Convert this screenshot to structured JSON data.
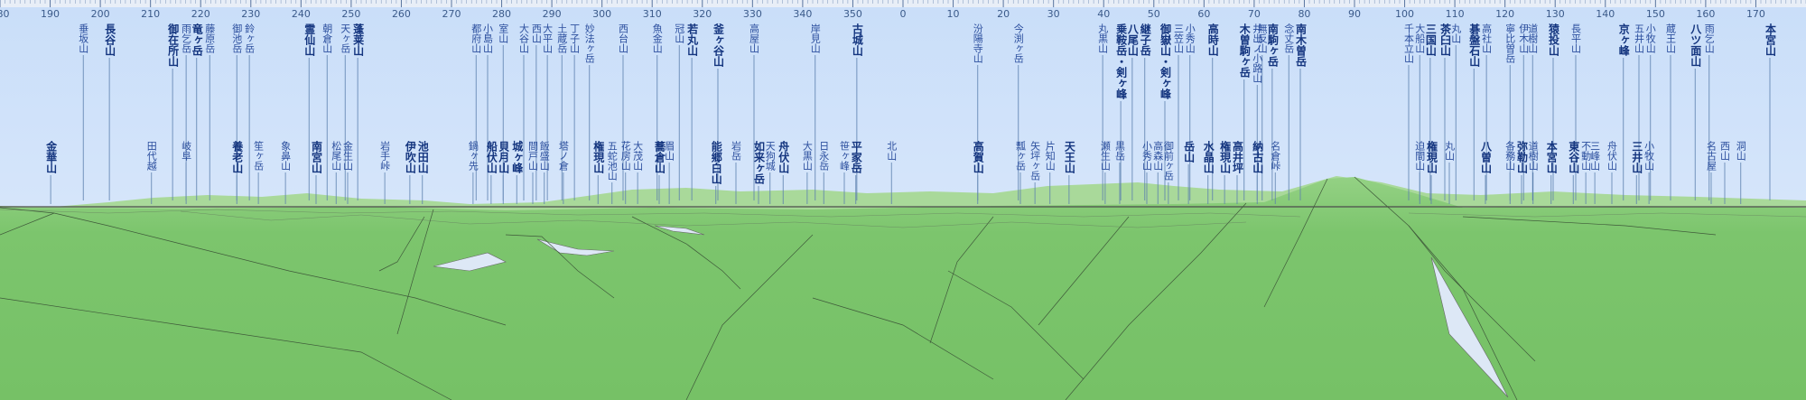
{
  "chart_data": {
    "type": "panorama",
    "xlim": [
      180,
      540
    ],
    "xticks": [
      180,
      190,
      200,
      210,
      220,
      230,
      240,
      250,
      260,
      270,
      280,
      290,
      300,
      310,
      320,
      330,
      340,
      350,
      {
        "value": 360,
        "label": "0"
      },
      {
        "value": 370,
        "label": "10"
      },
      {
        "value": 380,
        "label": "20"
      },
      {
        "value": 390,
        "label": "30"
      },
      {
        "value": 400,
        "label": "40"
      },
      {
        "value": 410,
        "label": "50"
      },
      {
        "value": 420,
        "label": "60"
      },
      {
        "value": 430,
        "label": "70"
      },
      {
        "value": 440,
        "label": "80"
      },
      {
        "value": 450,
        "label": "90"
      },
      {
        "value": 460,
        "label": "100"
      },
      {
        "value": 470,
        "label": "110"
      },
      {
        "value": 480,
        "label": "120"
      },
      {
        "value": 490,
        "label": "130"
      },
      {
        "value": 500,
        "label": "140"
      },
      {
        "value": 510,
        "label": "150"
      },
      {
        "value": 520,
        "label": "160"
      },
      {
        "value": 530,
        "label": "170"
      }
    ],
    "upper_labels": [
      {
        "name": "垂坂山",
        "azimuth": 196.6,
        "bold": false
      },
      {
        "name": "長谷山",
        "azimuth": 201.8,
        "bold": true
      },
      {
        "name": "御在所山",
        "azimuth": 214.4,
        "bold": true
      },
      {
        "name": "雨乞岳",
        "azimuth": 217.1,
        "bold": false
      },
      {
        "name": "竜ヶ岳",
        "azimuth": 219.2,
        "bold": true
      },
      {
        "name": "藤原岳",
        "azimuth": 221.8,
        "bold": false
      },
      {
        "name": "御池岳",
        "azimuth": 227.2,
        "bold": false
      },
      {
        "name": "鈴ヶ岳",
        "azimuth": 229.7,
        "bold": false
      },
      {
        "name": "霊仙山",
        "azimuth": 241.6,
        "bold": true
      },
      {
        "name": "朝倉山",
        "azimuth": 245.2,
        "bold": false
      },
      {
        "name": "天ヶ岳",
        "azimuth": 248.8,
        "bold": false
      },
      {
        "name": "蓬莱山",
        "azimuth": 251.3,
        "bold": true
      },
      {
        "name": "都府山",
        "azimuth": 274.9,
        "bold": false
      },
      {
        "name": "小島山",
        "azimuth": 277.2,
        "bold": false
      },
      {
        "name": "室山",
        "azimuth": 280.3,
        "bold": false
      },
      {
        "name": "大谷山",
        "azimuth": 284.4,
        "bold": false
      },
      {
        "name": "西山",
        "azimuth": 286.9,
        "bold": false
      },
      {
        "name": "大平山",
        "azimuth": 289.1,
        "bold": false
      },
      {
        "name": "土蔵岳",
        "azimuth": 292.0,
        "bold": false
      },
      {
        "name": "丁子山",
        "azimuth": 294.5,
        "bold": false
      },
      {
        "name": "妙法ヶ岳",
        "azimuth": 297.5,
        "bold": false
      },
      {
        "name": "西台山",
        "azimuth": 304.2,
        "bold": false
      },
      {
        "name": "魚金山",
        "azimuth": 311.0,
        "bold": false
      },
      {
        "name": "冠山",
        "azimuth": 315.4,
        "bold": false
      },
      {
        "name": "若丸山",
        "azimuth": 317.9,
        "bold": true
      },
      {
        "name": "釜ヶ谷山",
        "azimuth": 323.1,
        "bold": true
      },
      {
        "name": "高屋山",
        "azimuth": 330.3,
        "bold": false
      },
      {
        "name": "岸見山",
        "azimuth": 342.5,
        "bold": false
      },
      {
        "name": "古城山",
        "azimuth": 350.8,
        "bold": true
      },
      {
        "name": "汾陽寺山",
        "azimuth": 374.9,
        "bold": false
      },
      {
        "name": "今渕ヶ岳",
        "azimuth": 383.0,
        "bold": false
      },
      {
        "name": "丸黒山",
        "azimuth": 399.8,
        "bold": false
      },
      {
        "name": "乗鞍岳・剣ヶ峰",
        "azimuth": 403.4,
        "bold": true
      },
      {
        "name": "八尾山",
        "azimuth": 405.7,
        "bold": true
      },
      {
        "name": "継子岳",
        "azimuth": 408.2,
        "bold": true
      },
      {
        "name": "御嶽山・剣ヶ峰",
        "azimuth": 412.2,
        "bold": true
      },
      {
        "name": "三笠山",
        "azimuth": 414.9,
        "bold": false
      },
      {
        "name": "小秀山",
        "azimuth": 417.2,
        "bold": false
      },
      {
        "name": "高時山",
        "azimuth": 421.7,
        "bold": true
      },
      {
        "name": "木曽駒ヶ岳",
        "azimuth": 428.0,
        "bold": true
      },
      {
        "name": "井出ノ小路山",
        "azimuth": 430.6,
        "bold": false
      },
      {
        "name": "無反山",
        "azimuth": 431.6,
        "bold": false
      },
      {
        "name": "南駒ヶ岳",
        "azimuth": 433.6,
        "bold": true
      },
      {
        "name": "念丈岳",
        "azimuth": 436.9,
        "bold": false
      },
      {
        "name": "南木曽岳",
        "azimuth": 439.2,
        "bold": true
      },
      {
        "name": "千本立山",
        "azimuth": 460.8,
        "bold": false
      },
      {
        "name": "大船山",
        "azimuth": 463.0,
        "bold": false
      },
      {
        "name": "三国山",
        "azimuth": 465.1,
        "bold": true
      },
      {
        "name": "茶臼山",
        "azimuth": 468.0,
        "bold": true
      },
      {
        "name": "丸山",
        "azimuth": 470.2,
        "bold": false
      },
      {
        "name": "碁盤石山",
        "azimuth": 473.8,
        "bold": true
      },
      {
        "name": "高社山",
        "azimuth": 476.3,
        "bold": false
      },
      {
        "name": "寧比曽岳",
        "azimuth": 481.0,
        "bold": false
      },
      {
        "name": "伊木山",
        "azimuth": 483.7,
        "bold": false
      },
      {
        "name": "道樹山",
        "azimuth": 485.5,
        "bold": false
      },
      {
        "name": "猿投山",
        "azimuth": 489.6,
        "bold": true
      },
      {
        "name": "長平山",
        "azimuth": 494.1,
        "bold": false
      },
      {
        "name": "京ヶ峰",
        "azimuth": 503.6,
        "bold": true
      },
      {
        "name": "五井山",
        "azimuth": 506.7,
        "bold": false
      },
      {
        "name": "小牧山",
        "azimuth": 509.0,
        "bold": false
      },
      {
        "name": "蔵王山",
        "azimuth": 513.0,
        "bold": false
      },
      {
        "name": "八ツ面山",
        "azimuth": 517.9,
        "bold": true
      },
      {
        "name": "雨乞山",
        "azimuth": 520.7,
        "bold": false
      },
      {
        "name": "本宮山",
        "azimuth": 532.8,
        "bold": true
      }
    ],
    "lower_labels": [
      {
        "name": "金華山",
        "azimuth": 190.1,
        "bold": true
      },
      {
        "name": "田代越",
        "azimuth": 210.2,
        "bold": false
      },
      {
        "name": "岐阜",
        "azimuth": 217.1,
        "bold": false
      },
      {
        "name": "養老山",
        "azimuth": 227.2,
        "bold": true
      },
      {
        "name": "笙ヶ岳",
        "azimuth": 231.5,
        "bold": false
      },
      {
        "name": "象鼻山",
        "azimuth": 236.9,
        "bold": false
      },
      {
        "name": "南宮山",
        "azimuth": 243.0,
        "bold": true
      },
      {
        "name": "松尾山",
        "azimuth": 247.0,
        "bold": false
      },
      {
        "name": "金生山",
        "azimuth": 249.3,
        "bold": false
      },
      {
        "name": "岩手峠",
        "azimuth": 256.7,
        "bold": false
      },
      {
        "name": "伊吹山",
        "azimuth": 261.7,
        "bold": true
      },
      {
        "name": "池田山",
        "azimuth": 264.2,
        "bold": true
      },
      {
        "name": "鍋ヶ先",
        "azimuth": 274.3,
        "bold": false
      },
      {
        "name": "船伏山",
        "azimuth": 277.9,
        "bold": true
      },
      {
        "name": "貝月山",
        "azimuth": 280.3,
        "bold": true
      },
      {
        "name": "城ヶ峰",
        "azimuth": 283.0,
        "bold": true
      },
      {
        "name": "間戸山",
        "azimuth": 286.2,
        "bold": false
      },
      {
        "name": "飯盛山",
        "azimuth": 288.5,
        "bold": false
      },
      {
        "name": "塔ノ倉",
        "azimuth": 292.3,
        "bold": false
      },
      {
        "name": "権現山",
        "azimuth": 299.2,
        "bold": true
      },
      {
        "name": "五蛇池山",
        "azimuth": 302.0,
        "bold": false
      },
      {
        "name": "花房山",
        "azimuth": 304.7,
        "bold": false
      },
      {
        "name": "大茂山",
        "azimuth": 307.1,
        "bold": false
      },
      {
        "name": "蕎倉山",
        "azimuth": 311.4,
        "bold": true
      },
      {
        "name": "眉山",
        "azimuth": 313.4,
        "bold": false
      },
      {
        "name": "能郷白山",
        "azimuth": 322.7,
        "bold": true
      },
      {
        "name": "岩岳",
        "azimuth": 326.7,
        "bold": false
      },
      {
        "name": "如来ヶ岳",
        "azimuth": 331.2,
        "bold": true
      },
      {
        "name": "天狗城",
        "azimuth": 333.5,
        "bold": false
      },
      {
        "name": "舟伏山",
        "azimuth": 336.1,
        "bold": true
      },
      {
        "name": "大黒山",
        "azimuth": 340.9,
        "bold": false
      },
      {
        "name": "日永岳",
        "azimuth": 344.2,
        "bold": false
      },
      {
        "name": "笹ヶ峰",
        "azimuth": 348.3,
        "bold": false
      },
      {
        "name": "平家岳",
        "azimuth": 350.6,
        "bold": true
      },
      {
        "name": "北山",
        "azimuth": 357.7,
        "bold": false
      },
      {
        "name": "高賀山",
        "azimuth": 374.9,
        "bold": true
      },
      {
        "name": "瓢ヶ岳",
        "azimuth": 383.4,
        "bold": false
      },
      {
        "name": "矢坪ヶ岳",
        "azimuth": 386.3,
        "bold": false
      },
      {
        "name": "片知山",
        "azimuth": 389.3,
        "bold": false
      },
      {
        "name": "天王山",
        "azimuth": 393.1,
        "bold": true
      },
      {
        "name": "瀬生山",
        "azimuth": 400.3,
        "bold": false
      },
      {
        "name": "黒岳",
        "azimuth": 403.2,
        "bold": false
      },
      {
        "name": "小秀山",
        "azimuth": 408.6,
        "bold": false
      },
      {
        "name": "高森山",
        "azimuth": 410.8,
        "bold": false
      },
      {
        "name": "御前ヶ岳",
        "azimuth": 412.9,
        "bold": false
      },
      {
        "name": "岳山",
        "azimuth": 416.9,
        "bold": true
      },
      {
        "name": "水晶山",
        "azimuth": 420.8,
        "bold": true
      },
      {
        "name": "権現山",
        "azimuth": 424.1,
        "bold": true
      },
      {
        "name": "高井坪",
        "azimuth": 426.6,
        "bold": true
      },
      {
        "name": "納古山",
        "azimuth": 430.6,
        "bold": true
      },
      {
        "name": "名倉峠",
        "azimuth": 434.2,
        "bold": false
      },
      {
        "name": "迫間山",
        "azimuth": 463.0,
        "bold": false
      },
      {
        "name": "権現山",
        "azimuth": 465.3,
        "bold": true
      },
      {
        "name": "丸山",
        "azimuth": 468.9,
        "bold": false
      },
      {
        "name": "八曽山",
        "azimuth": 476.1,
        "bold": true
      },
      {
        "name": "各務山",
        "azimuth": 481.0,
        "bold": false
      },
      {
        "name": "弥勒山",
        "azimuth": 483.3,
        "bold": true
      },
      {
        "name": "道樹山",
        "azimuth": 485.6,
        "bold": false
      },
      {
        "name": "本宮山",
        "azimuth": 489.2,
        "bold": true
      },
      {
        "name": "東谷山",
        "azimuth": 493.6,
        "bold": true
      },
      {
        "name": "不動山",
        "azimuth": 496.1,
        "bold": false
      },
      {
        "name": "三峰山",
        "azimuth": 497.9,
        "bold": false
      },
      {
        "name": "舟伏山",
        "azimuth": 501.3,
        "bold": false
      },
      {
        "name": "三井山",
        "azimuth": 506.2,
        "bold": true
      },
      {
        "name": "小牧山",
        "azimuth": 508.7,
        "bold": false
      },
      {
        "name": "名古屋",
        "azimuth": 521.1,
        "bold": false
      },
      {
        "name": "西山",
        "azimuth": 523.8,
        "bold": false
      },
      {
        "name": "洞山",
        "azimuth": 527.0,
        "bold": false
      }
    ]
  }
}
